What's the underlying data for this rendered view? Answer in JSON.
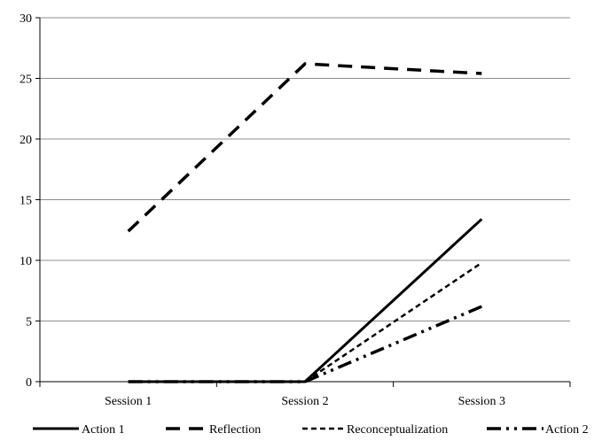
{
  "chart_data": {
    "type": "line",
    "title": "",
    "xlabel": "",
    "ylabel": "",
    "categories": [
      "Session 1",
      "Session 2",
      "Session 3"
    ],
    "ylim": [
      0,
      30
    ],
    "yticks": [
      0,
      5,
      10,
      15,
      20,
      25,
      30
    ],
    "grid": "horizontal",
    "legend_position": "bottom",
    "series": [
      {
        "name": "Action 1",
        "values": [
          0,
          0,
          13.4
        ],
        "style": "solid"
      },
      {
        "name": "Reflection",
        "values": [
          12.4,
          26.2,
          25.4
        ],
        "style": "long-dash"
      },
      {
        "name": "Reconceptualization",
        "values": [
          0,
          0,
          9.8
        ],
        "style": "short-dash"
      },
      {
        "name": "Action 2",
        "values": [
          0,
          0,
          6.2
        ],
        "style": "dash-dot-dot"
      }
    ]
  }
}
